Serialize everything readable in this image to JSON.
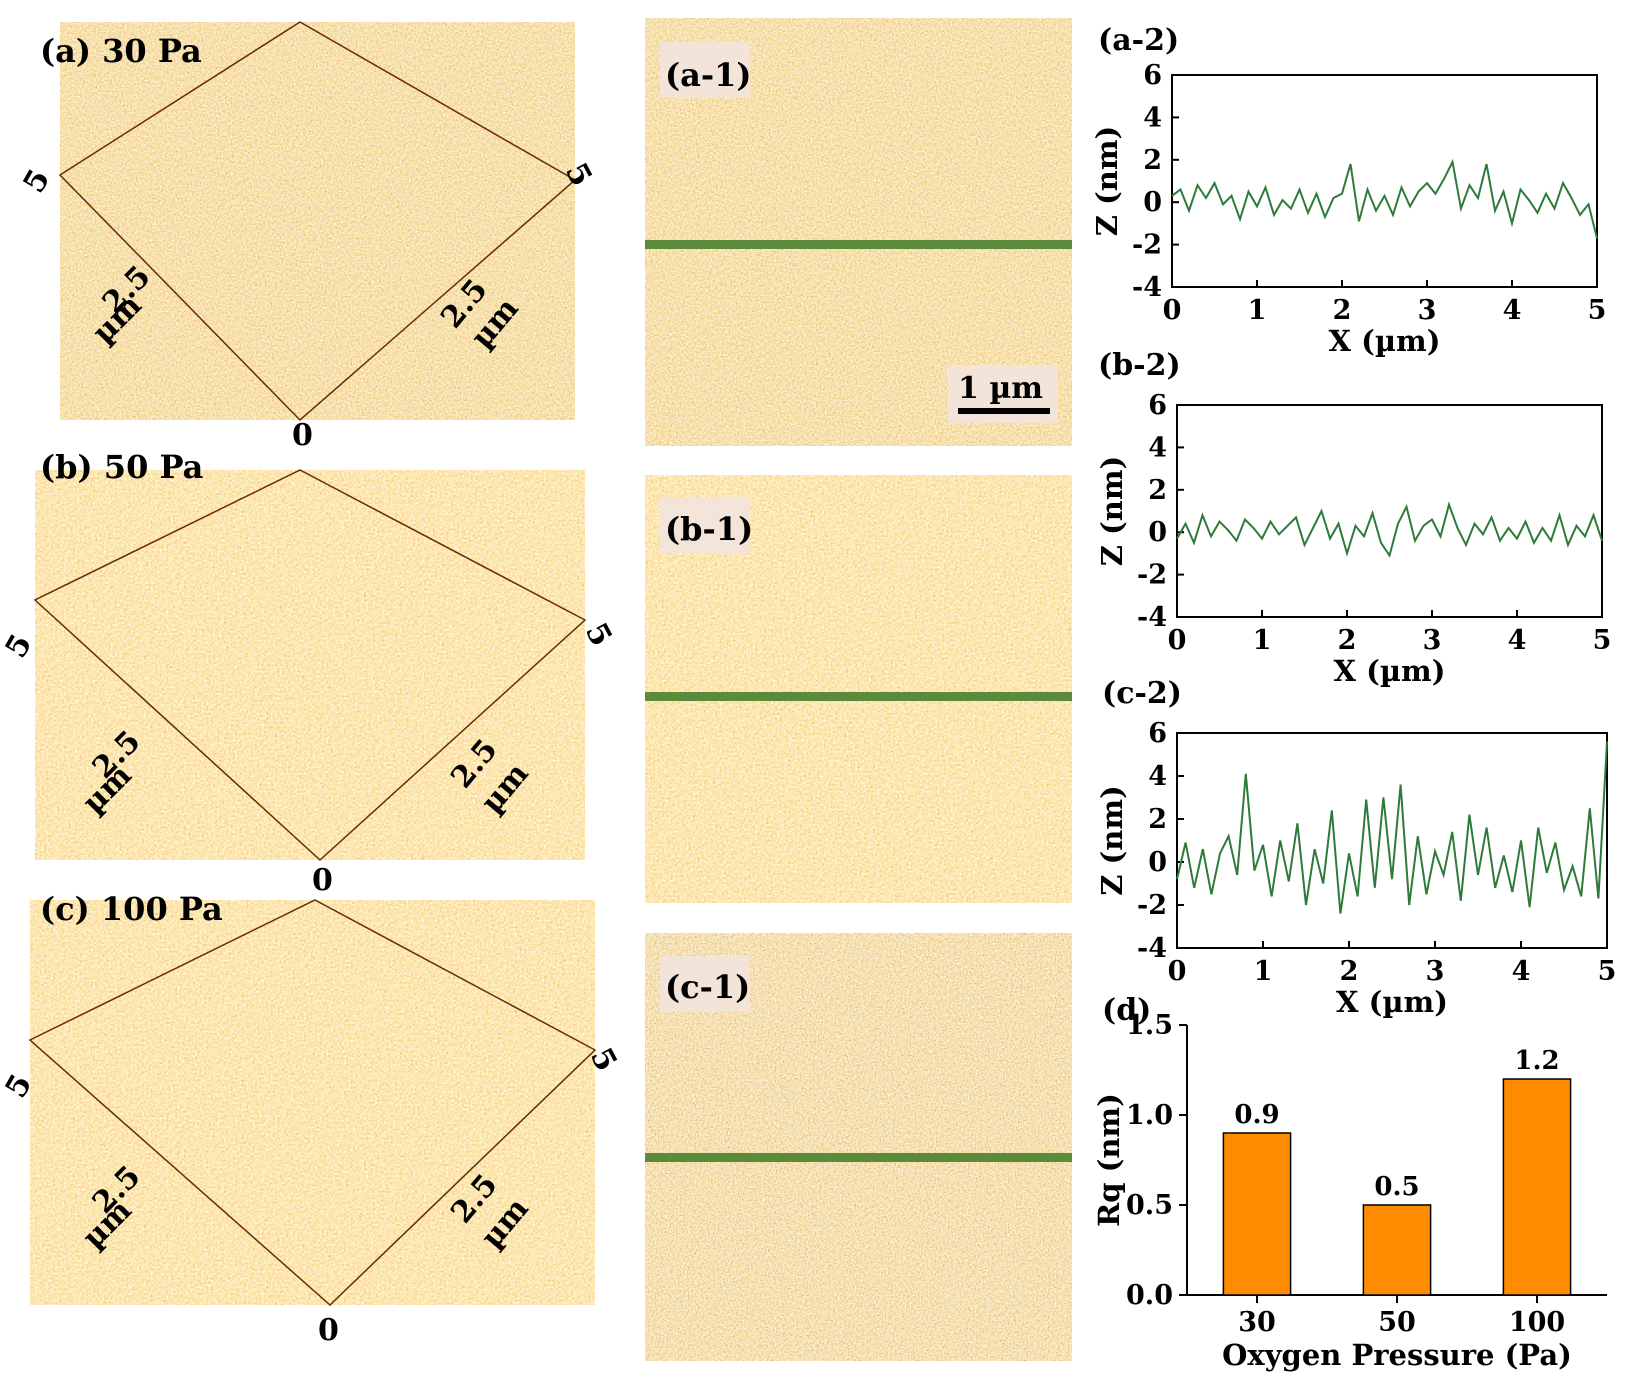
{
  "colors": {
    "afm_dark": "#8a3a06",
    "afm_mid": "#c8670f",
    "afm_light": "#e9a43c",
    "afm_highlight": "#fbe3a6",
    "profile_line": "#2e7a3a",
    "bar_fill": "#ff8c00",
    "axis": "#000000",
    "label_box": "#f2e4dc"
  },
  "panels_3d": [
    {
      "title": "(a) 30 Pa",
      "tick_left": "5",
      "tick_right": "5",
      "tick_mid_left": "2.5",
      "tick_mid_right": "2.5",
      "unit_left": "µm",
      "unit_right": "µm",
      "tick_origin": "0",
      "style": "normal"
    },
    {
      "title": "(b) 50 Pa",
      "tick_left": "5",
      "tick_right": "5",
      "tick_mid_left": "2.5",
      "tick_mid_right": "2.5",
      "unit_left": "µm",
      "unit_right": "µm",
      "tick_origin": "0",
      "style": "smooth"
    },
    {
      "title": "(c) 100 Pa",
      "tick_left": "5",
      "tick_right": "5",
      "tick_mid_left": "2.5",
      "tick_mid_right": "2.5",
      "unit_left": "µm",
      "unit_right": "µm",
      "tick_origin": "0",
      "style": "rough"
    }
  ],
  "panels_2d": [
    {
      "label": "(a-1)",
      "scale_bar": "1 µm"
    },
    {
      "label": "(b-1)"
    },
    {
      "label": "(c-1)"
    }
  ],
  "chart_data": [
    {
      "type": "line",
      "panel_label": "(a-2)",
      "xlabel": "X (µm)",
      "ylabel": "Z (nm)",
      "xlim": [
        0,
        5
      ],
      "ylim": [
        -4,
        6
      ],
      "xticks": [
        0,
        1,
        2,
        3,
        4,
        5
      ],
      "yticks": [
        -4,
        -2,
        0,
        2,
        4,
        6
      ],
      "x": [
        0,
        0.1,
        0.2,
        0.3,
        0.4,
        0.5,
        0.6,
        0.7,
        0.8,
        0.9,
        1.0,
        1.1,
        1.2,
        1.3,
        1.4,
        1.5,
        1.6,
        1.7,
        1.8,
        1.9,
        2.0,
        2.1,
        2.2,
        2.3,
        2.4,
        2.5,
        2.6,
        2.7,
        2.8,
        2.9,
        3.0,
        3.1,
        3.2,
        3.3,
        3.4,
        3.5,
        3.6,
        3.7,
        3.8,
        3.9,
        4.0,
        4.1,
        4.2,
        4.3,
        4.4,
        4.5,
        4.6,
        4.7,
        4.8,
        4.9,
        5.0
      ],
      "values": [
        0.3,
        0.6,
        -0.4,
        0.8,
        0.2,
        0.9,
        -0.1,
        0.3,
        -0.8,
        0.5,
        -0.2,
        0.7,
        -0.6,
        0.1,
        -0.3,
        0.6,
        -0.5,
        0.4,
        -0.7,
        0.2,
        0.4,
        1.8,
        -0.9,
        0.6,
        -0.4,
        0.3,
        -0.6,
        0.7,
        -0.2,
        0.5,
        0.9,
        0.4,
        1.1,
        1.9,
        -0.3,
        0.8,
        0.2,
        1.8,
        -0.4,
        0.5,
        -1.0,
        0.6,
        0.1,
        -0.5,
        0.4,
        -0.3,
        0.9,
        0.2,
        -0.6,
        -0.1,
        -1.7
      ]
    },
    {
      "type": "line",
      "panel_label": "(b-2)",
      "xlabel": "X (µm)",
      "ylabel": "Z (nm)",
      "xlim": [
        0,
        5
      ],
      "ylim": [
        -4,
        6
      ],
      "xticks": [
        0,
        1,
        2,
        3,
        4,
        5
      ],
      "yticks": [
        -4,
        -2,
        0,
        2,
        4,
        6
      ],
      "x": [
        0,
        0.1,
        0.2,
        0.3,
        0.4,
        0.5,
        0.6,
        0.7,
        0.8,
        0.9,
        1.0,
        1.1,
        1.2,
        1.3,
        1.4,
        1.5,
        1.6,
        1.7,
        1.8,
        1.9,
        2.0,
        2.1,
        2.2,
        2.3,
        2.4,
        2.5,
        2.6,
        2.7,
        2.8,
        2.9,
        3.0,
        3.1,
        3.2,
        3.3,
        3.4,
        3.5,
        3.6,
        3.7,
        3.8,
        3.9,
        4.0,
        4.1,
        4.2,
        4.3,
        4.4,
        4.5,
        4.6,
        4.7,
        4.8,
        4.9,
        5.0
      ],
      "values": [
        -0.3,
        0.4,
        -0.5,
        0.8,
        -0.2,
        0.5,
        0.1,
        -0.4,
        0.6,
        0.2,
        -0.3,
        0.5,
        -0.1,
        0.3,
        0.7,
        -0.6,
        0.2,
        1.0,
        -0.3,
        0.4,
        -1.0,
        0.3,
        -0.2,
        0.9,
        -0.5,
        -1.1,
        0.4,
        1.2,
        -0.4,
        0.3,
        0.6,
        -0.2,
        1.3,
        0.2,
        -0.6,
        0.4,
        -0.1,
        0.7,
        -0.4,
        0.2,
        -0.3,
        0.5,
        -0.5,
        0.2,
        -0.4,
        0.8,
        -0.6,
        0.3,
        -0.2,
        0.8,
        -0.4
      ]
    },
    {
      "type": "line",
      "panel_label": "(c-2)",
      "xlabel": "X (µm)",
      "ylabel": "Z (nm)",
      "xlim": [
        0,
        5
      ],
      "ylim": [
        -4,
        6
      ],
      "xticks": [
        0,
        1,
        2,
        3,
        4,
        5
      ],
      "yticks": [
        -4,
        -2,
        0,
        2,
        4,
        6
      ],
      "x": [
        0,
        0.1,
        0.2,
        0.3,
        0.4,
        0.5,
        0.6,
        0.7,
        0.8,
        0.9,
        1.0,
        1.1,
        1.2,
        1.3,
        1.4,
        1.5,
        1.6,
        1.7,
        1.8,
        1.9,
        2.0,
        2.1,
        2.2,
        2.3,
        2.4,
        2.5,
        2.6,
        2.7,
        2.8,
        2.9,
        3.0,
        3.1,
        3.2,
        3.3,
        3.4,
        3.5,
        3.6,
        3.7,
        3.8,
        3.9,
        4.0,
        4.1,
        4.2,
        4.3,
        4.4,
        4.5,
        4.6,
        4.7,
        4.8,
        4.9,
        5.0
      ],
      "values": [
        -0.8,
        0.9,
        -1.2,
        0.6,
        -1.5,
        0.4,
        1.2,
        -0.6,
        4.1,
        -0.4,
        0.8,
        -1.6,
        1.0,
        -0.9,
        1.8,
        -2.0,
        0.6,
        -1.0,
        2.4,
        -2.4,
        0.4,
        -1.6,
        2.9,
        -1.2,
        3.0,
        -0.8,
        3.6,
        -2.0,
        1.2,
        -1.5,
        0.5,
        -0.6,
        1.4,
        -1.8,
        2.2,
        -0.6,
        1.6,
        -1.2,
        0.3,
        -1.4,
        1.0,
        -2.1,
        1.6,
        -0.5,
        0.9,
        -1.3,
        -0.2,
        -1.6,
        2.5,
        -1.7,
        5.6
      ]
    },
    {
      "type": "bar",
      "panel_label": "(d)",
      "categories": [
        "30",
        "50",
        "100"
      ],
      "values": [
        0.9,
        0.5,
        1.2
      ],
      "data_labels": [
        "0.9",
        "0.5",
        "1.2"
      ],
      "xlabel": "Oxygen Pressure (Pa)",
      "ylabel": "Rq (nm)",
      "ylim": [
        0.0,
        1.5
      ],
      "yticks": [
        "0.0",
        "0.5",
        "1.0",
        "1.5"
      ]
    }
  ]
}
